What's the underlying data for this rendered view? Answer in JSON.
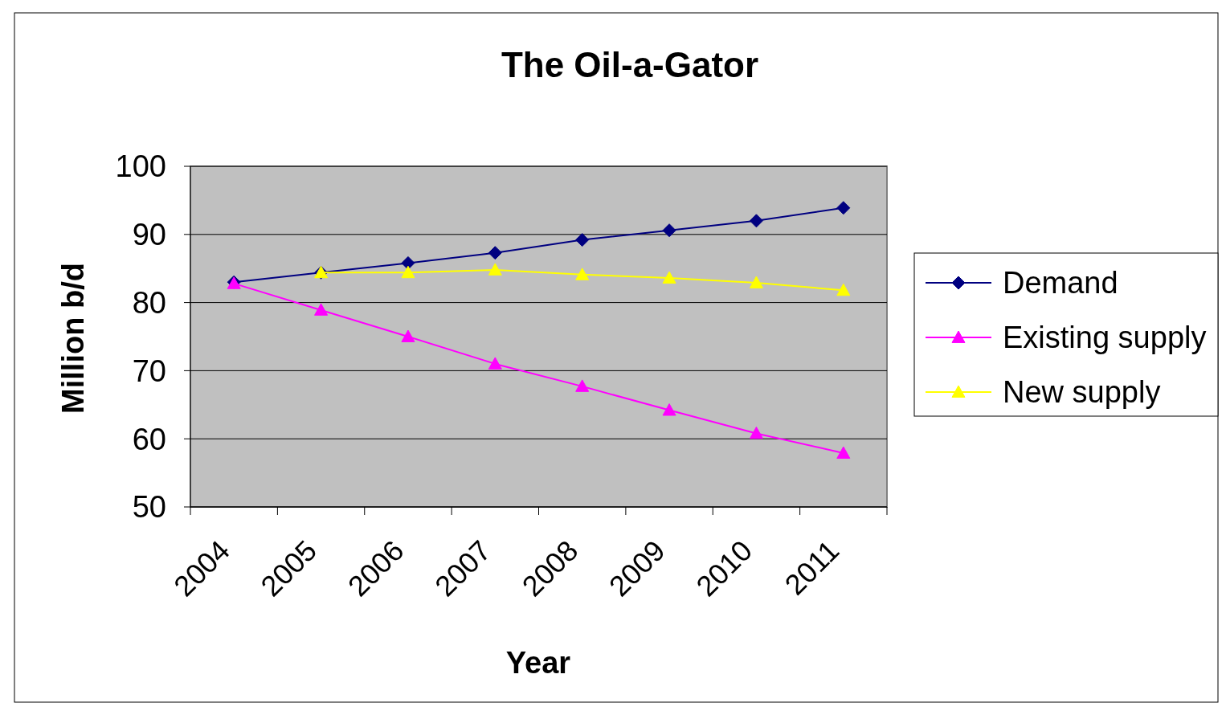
{
  "chart_data": {
    "type": "line",
    "title": "The Oil-a-Gator",
    "xlabel": "Year",
    "ylabel": "Million b/d",
    "categories": [
      "2004",
      "2005",
      "2006",
      "2007",
      "2008",
      "2009",
      "2010",
      "2011"
    ],
    "series": [
      {
        "name": "Demand",
        "color": "#000080",
        "marker": "diamond",
        "values": [
          83.0,
          84.4,
          85.8,
          87.3,
          89.2,
          90.6,
          92.0,
          93.9
        ]
      },
      {
        "name": "Existing supply",
        "color": "#ff00ff",
        "marker": "triangle",
        "values": [
          82.8,
          78.9,
          75.0,
          71.0,
          67.7,
          64.2,
          60.8,
          57.9
        ]
      },
      {
        "name": "New supply",
        "color": "#ffff00",
        "marker": "triangle",
        "values": [
          null,
          84.4,
          84.4,
          84.8,
          84.1,
          83.6,
          82.9,
          81.8
        ]
      }
    ],
    "ylim": [
      50,
      100
    ],
    "yticks": [
      50,
      60,
      70,
      80,
      90,
      100
    ],
    "grid": "y",
    "legend": "right",
    "line_style": "solid"
  }
}
